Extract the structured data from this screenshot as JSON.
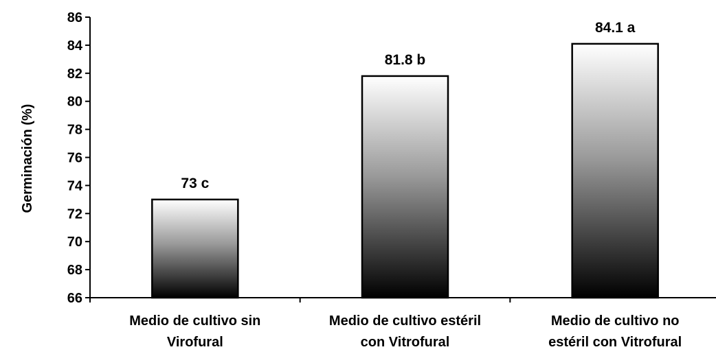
{
  "chart_data": {
    "type": "bar",
    "title": "",
    "xlabel": "",
    "ylabel": "Germinación (%)",
    "ylim": [
      66,
      86
    ],
    "yticks": [
      66,
      68,
      70,
      72,
      74,
      76,
      78,
      80,
      82,
      84,
      86
    ],
    "grid": false,
    "categories": [
      [
        "Medio de cultivo sin",
        "Virofural"
      ],
      [
        "Medio de cultivo estéril",
        "con Vitrofural"
      ],
      [
        "Medio de cultivo no",
        "estéril con Vitrofural"
      ]
    ],
    "values": [
      73,
      81.8,
      84.1
    ],
    "data_labels": [
      "73 c",
      "81.8 b",
      "84.1 a"
    ],
    "bar_fill": "vertical gradient black to white"
  }
}
